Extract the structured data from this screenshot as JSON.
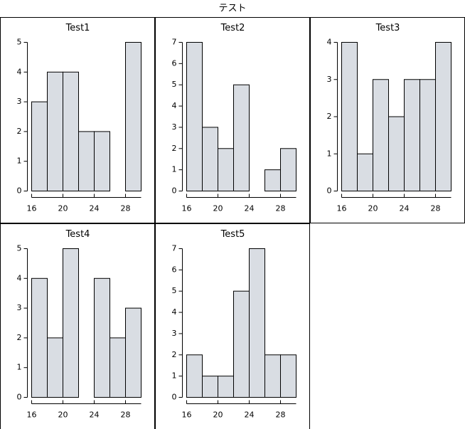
{
  "title": "テスト",
  "chart_data": [
    {
      "type": "histogram",
      "title": "Test1",
      "bins": [
        16,
        18,
        20,
        22,
        24,
        26,
        28,
        30
      ],
      "values": [
        3,
        4,
        4,
        2,
        2,
        0,
        5
      ],
      "color": "#d9dde3",
      "xlim": [
        16,
        30
      ],
      "xticks": [
        16,
        20,
        24,
        28
      ],
      "ylim": [
        0,
        5
      ],
      "yticks": [
        0,
        1,
        2,
        3,
        4,
        5
      ]
    },
    {
      "type": "histogram",
      "title": "Test2",
      "bins": [
        16,
        18,
        20,
        22,
        24,
        26,
        28,
        30
      ],
      "values": [
        7,
        3,
        2,
        5,
        0,
        1,
        2
      ],
      "color": "#d9dde3",
      "xlim": [
        16,
        30
      ],
      "xticks": [
        16,
        20,
        24,
        28
      ],
      "ylim": [
        0,
        7
      ],
      "yticks": [
        0,
        1,
        2,
        3,
        4,
        5,
        6,
        7
      ]
    },
    {
      "type": "histogram",
      "title": "Test3",
      "bins": [
        16,
        18,
        20,
        22,
        24,
        26,
        28,
        30
      ],
      "values": [
        4,
        1,
        3,
        2,
        3,
        3,
        4
      ],
      "color": "#d9dde3",
      "xlim": [
        16,
        30
      ],
      "xticks": [
        16,
        20,
        24,
        28
      ],
      "ylim": [
        0,
        4
      ],
      "yticks": [
        0,
        1,
        2,
        3,
        4
      ]
    },
    {
      "type": "histogram",
      "title": "Test4",
      "bins": [
        16,
        18,
        20,
        22,
        24,
        26,
        28,
        30
      ],
      "values": [
        4,
        2,
        5,
        0,
        4,
        2,
        3
      ],
      "color": "#d9dde3",
      "xlim": [
        16,
        30
      ],
      "xticks": [
        16,
        20,
        24,
        28
      ],
      "ylim": [
        0,
        5
      ],
      "yticks": [
        0,
        1,
        2,
        3,
        4,
        5
      ]
    },
    {
      "type": "histogram",
      "title": "Test5",
      "bins": [
        16,
        18,
        20,
        22,
        24,
        26,
        28,
        30
      ],
      "values": [
        2,
        1,
        1,
        5,
        7,
        2,
        2
      ],
      "color": "#d9dde3",
      "xlim": [
        16,
        30
      ],
      "xticks": [
        16,
        20,
        24,
        28
      ],
      "ylim": [
        0,
        7
      ],
      "yticks": [
        0,
        1,
        2,
        3,
        4,
        5,
        6,
        7
      ]
    }
  ]
}
